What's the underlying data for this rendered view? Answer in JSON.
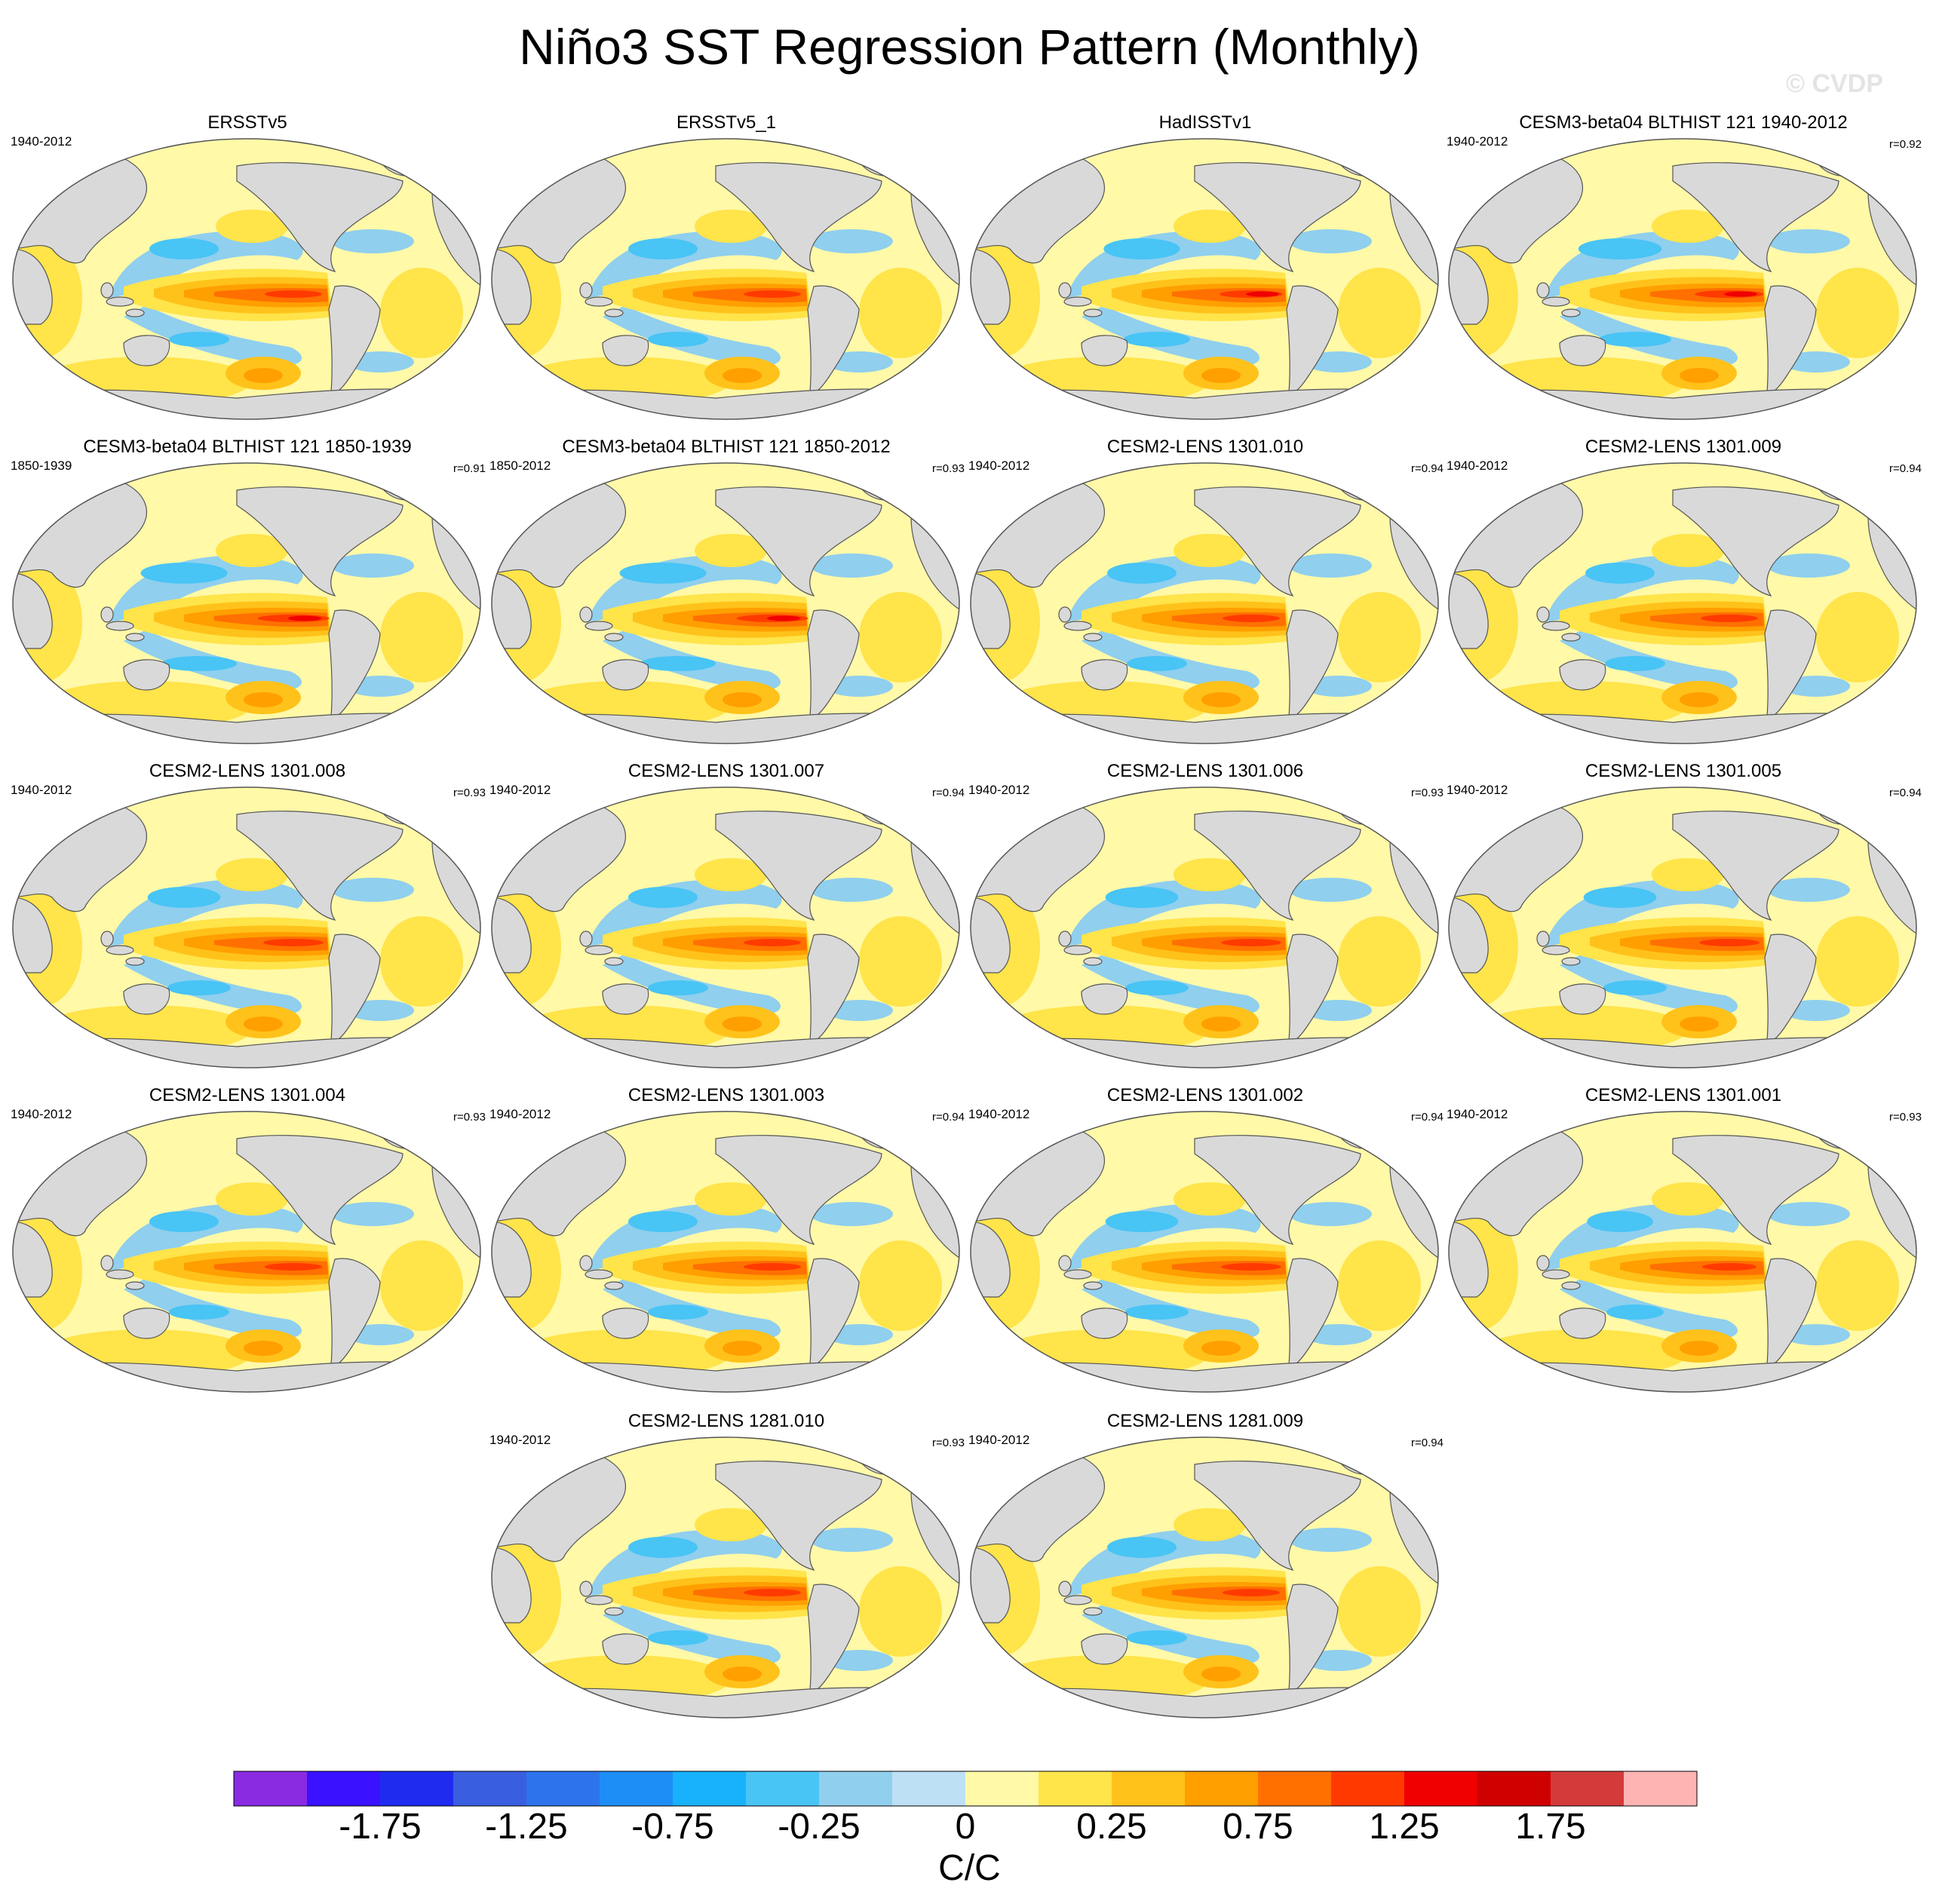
{
  "title": "Niño3 SST Regression Pattern (Monthly)",
  "watermark": "© CVDP",
  "colors": {
    "land": "#d9d9d9",
    "ocean_neutral": "#fff9a8",
    "outline": "#555555",
    "scale": [
      "#8a2be2",
      "#3a12ff",
      "#1f2cf0",
      "#3a5ee0",
      "#2d74ec",
      "#1e8ef7",
      "#18b1fb",
      "#48c4f5",
      "#90cfee",
      "#bde0f4",
      "#fff9a8",
      "#ffe44a",
      "#ffc21a",
      "#ff9f00",
      "#ff7000",
      "#ff3a00",
      "#f00000",
      "#cf0000",
      "#d33a3a",
      "#ffb4b4"
    ]
  },
  "panels": [
    {
      "title": "ERSSTv5",
      "period": "1940-2012",
      "r": "",
      "pattern": 1.0
    },
    {
      "title": "ERSSTv5_1",
      "period": "",
      "r": "",
      "pattern": 1.0
    },
    {
      "title": "HadISSTv1",
      "period": "",
      "r": "",
      "pattern": 1.1
    },
    {
      "title": "CESM3-beta04 BLTHIST 121 1940-2012",
      "period": "1940-2012",
      "r": "r=0.92",
      "pattern": 1.2
    },
    {
      "title": "CESM3-beta04 BLTHIST 121 1850-1939",
      "period": "1850-1939",
      "r": "r=0.91",
      "pattern": 1.25
    },
    {
      "title": "CESM3-beta04 BLTHIST 121 1850-2012",
      "period": "1850-2012",
      "r": "r=0.93",
      "pattern": 1.25
    },
    {
      "title": "CESM2-LENS 1301.010",
      "period": "1940-2012",
      "r": "r=0.94",
      "pattern": 1.0
    },
    {
      "title": "CESM2-LENS 1301.009",
      "period": "1940-2012",
      "r": "r=0.94",
      "pattern": 1.0
    },
    {
      "title": "CESM2-LENS 1301.008",
      "period": "1940-2012",
      "r": "r=0.93",
      "pattern": 1.05
    },
    {
      "title": "CESM2-LENS 1301.007",
      "period": "1940-2012",
      "r": "r=0.94",
      "pattern": 1.0
    },
    {
      "title": "CESM2-LENS 1301.006",
      "period": "1940-2012",
      "r": "r=0.93",
      "pattern": 1.05
    },
    {
      "title": "CESM2-LENS 1301.005",
      "period": "1940-2012",
      "r": "r=0.94",
      "pattern": 1.05
    },
    {
      "title": "CESM2-LENS 1301.004",
      "period": "1940-2012",
      "r": "r=0.93",
      "pattern": 1.0
    },
    {
      "title": "CESM2-LENS 1301.003",
      "period": "1940-2012",
      "r": "r=0.94",
      "pattern": 1.0
    },
    {
      "title": "CESM2-LENS 1301.002",
      "period": "1940-2012",
      "r": "r=0.94",
      "pattern": 1.05
    },
    {
      "title": "CESM2-LENS 1301.001",
      "period": "1940-2012",
      "r": "r=0.93",
      "pattern": 0.95
    },
    {
      "title": "CESM2-LENS 1281.010",
      "period": "1940-2012",
      "r": "r=0.93",
      "pattern": 1.0
    },
    {
      "title": "CESM2-LENS 1281.009",
      "period": "1940-2012",
      "r": "r=0.94",
      "pattern": 1.0
    }
  ],
  "colorbar": {
    "labels": [
      "-1.75",
      "-1.25",
      "-0.75",
      "-0.25",
      "0",
      "0.25",
      "0.75",
      "1.25",
      "1.75"
    ],
    "units": "C/C"
  }
}
